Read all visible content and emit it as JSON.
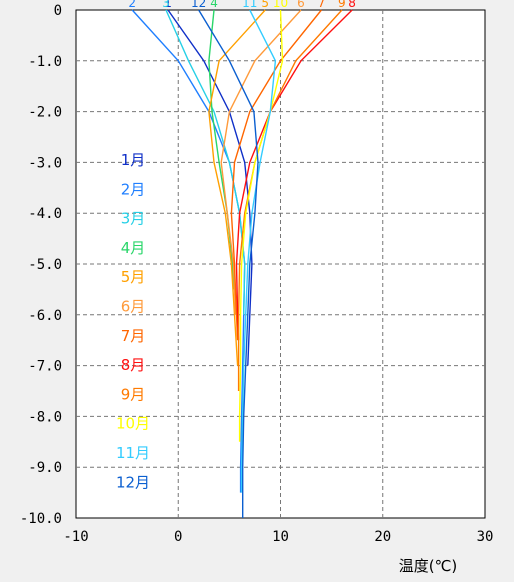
{
  "chart_data": {
    "type": "line",
    "orientation": "depth-profile",
    "title": "",
    "xlabel": "温度(℃)",
    "ylabel": "",
    "xlim": [
      -10,
      30
    ],
    "ylim": [
      -10.0,
      0
    ],
    "x_ticks": [
      -10,
      0,
      10,
      20,
      30
    ],
    "y_ticks": [
      0,
      -1.0,
      -2.0,
      -3.0,
      -4.0,
      -5.0,
      -6.0,
      -7.0,
      -8.0,
      -9.0,
      -10.0
    ],
    "y_tick_labels": [
      "0",
      "-1.0",
      "-2.0",
      "-3.0",
      "-4.0",
      "-5.0",
      "-6.0",
      "-7.0",
      "-8.0",
      "-9.0",
      "-10.0"
    ],
    "grid": true,
    "legend_position": "left-inside",
    "series": [
      {
        "name": "1月",
        "color": "#1030c8",
        "label": "1",
        "depth": [
          0,
          -1,
          -2,
          -3,
          -4,
          -5,
          -6,
          -7
        ],
        "temp": [
          -1,
          2.5,
          5,
          6.5,
          7,
          7.2,
          7,
          6.8
        ]
      },
      {
        "name": "2月",
        "color": "#1f7fff",
        "label": "2",
        "depth": [
          0,
          -1,
          -2,
          -3,
          -4,
          -5,
          -6,
          -7,
          -8,
          -9,
          -9.5
        ],
        "temp": [
          -4.5,
          0,
          3,
          5,
          6,
          6.5,
          6.4,
          6.3,
          6.2,
          6.1,
          6.1
        ]
      },
      {
        "name": "3月",
        "color": "#27d0e6",
        "label": "3",
        "depth": [
          0,
          -1,
          -2,
          -3,
          -4,
          -5,
          -6
        ],
        "temp": [
          -1.2,
          1,
          3.5,
          5,
          6,
          6.5,
          6.4
        ]
      },
      {
        "name": "4月",
        "color": "#2ad66a",
        "label": "4",
        "depth": [
          0,
          -1,
          -2,
          -3,
          -4,
          -5,
          -5.5
        ],
        "temp": [
          3.5,
          3,
          3.3,
          4,
          4.8,
          5.3,
          5.4
        ]
      },
      {
        "name": "5月",
        "color": "#ffa000",
        "label": "5",
        "depth": [
          0,
          -1,
          -2,
          -3,
          -4,
          -5,
          -6,
          -7
        ],
        "temp": [
          8.5,
          4,
          3,
          3.5,
          4.6,
          5.2,
          5.5,
          5.8
        ]
      },
      {
        "name": "6月",
        "color": "#ff9a3a",
        "label": "6",
        "depth": [
          0,
          -1,
          -2,
          -3,
          -4,
          -5,
          -6
        ],
        "temp": [
          12,
          7.5,
          5,
          4.2,
          4.8,
          5.4,
          5.6
        ]
      },
      {
        "name": "7月",
        "color": "#ff6600",
        "label": "7",
        "depth": [
          0,
          -1,
          -2,
          -3,
          -4,
          -5,
          -6,
          -6.5
        ],
        "temp": [
          14,
          10,
          7,
          5.5,
          5.2,
          5.5,
          5.7,
          5.8
        ]
      },
      {
        "name": "8月",
        "color": "#ff1010",
        "label": "8",
        "depth": [
          0,
          -1,
          -2,
          -3,
          -4,
          -5,
          -6,
          -6.5
        ],
        "temp": [
          17,
          12,
          9,
          7,
          6,
          5.7,
          5.8,
          5.9
        ]
      },
      {
        "name": "9月",
        "color": "#ff7a00",
        "label": "9",
        "depth": [
          0,
          -1,
          -2,
          -3,
          -4,
          -5,
          -6,
          -7,
          -7.5
        ],
        "temp": [
          16,
          11.5,
          9,
          7.5,
          6.5,
          6,
          5.9,
          5.9,
          5.9
        ]
      },
      {
        "name": "10月",
        "color": "#ffff00",
        "label": "10",
        "depth": [
          0,
          -1,
          -2,
          -3,
          -4,
          -5,
          -6,
          -7,
          -8,
          -8.5
        ],
        "temp": [
          10,
          10.2,
          9,
          7.5,
          6.6,
          6.2,
          6.1,
          6.1,
          6.0,
          6.0
        ]
      },
      {
        "name": "11月",
        "color": "#33ccff",
        "label": "11",
        "depth": [
          0,
          -1,
          -2,
          -3,
          -4,
          -5,
          -6,
          -7,
          -8,
          -9,
          -9.5
        ],
        "temp": [
          7,
          9.5,
          9,
          8,
          7.2,
          6.8,
          6.6,
          6.4,
          6.3,
          6.2,
          6.2
        ]
      },
      {
        "name": "12月",
        "color": "#0b5fd0",
        "label": "12",
        "depth": [
          0,
          -1,
          -2,
          -3,
          -4,
          -5,
          -6,
          -7,
          -8,
          -9,
          -10
        ],
        "temp": [
          2,
          5,
          7.4,
          7.8,
          7.5,
          7,
          6.8,
          6.6,
          6.4,
          6.3,
          6.3
        ]
      }
    ]
  }
}
